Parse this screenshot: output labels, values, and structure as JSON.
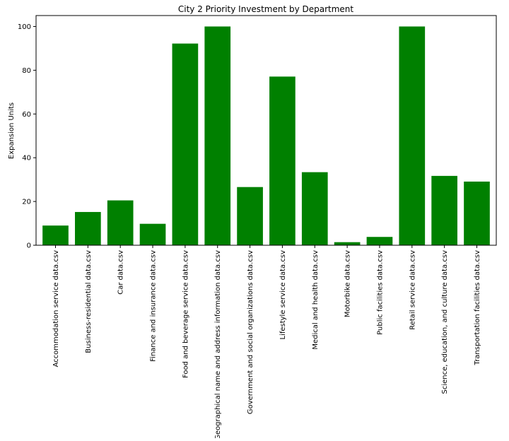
{
  "chart_data": {
    "type": "bar",
    "title": "City 2 Priority Investment by Department",
    "xlabel": "",
    "ylabel": "Expansion Units",
    "ylim": [
      0,
      105
    ],
    "yticks": [
      0,
      20,
      40,
      60,
      80,
      100
    ],
    "grid": false,
    "bar_color": "#008000",
    "categories": [
      "Accommodation service data.csv",
      "Business-residential data.csv",
      "Car data.csv",
      "Finance and insurance data.csv",
      "Food and beverage service data.csv",
      "Geographical name and address information data.csv",
      "Government and social organizations data.csv",
      "Lifestyle service data.csv",
      "Medical and health data.csv",
      "Motorbike data.csv",
      "Public facilities data.csv",
      "Retail service data.csv",
      "Science, education, and culture data.csv",
      "Transportation facilities data.csv"
    ],
    "values": [
      9,
      15.2,
      20.5,
      9.8,
      92.2,
      100,
      26.6,
      77.1,
      33.4,
      1.4,
      3.8,
      100,
      31.7,
      29.1
    ]
  }
}
